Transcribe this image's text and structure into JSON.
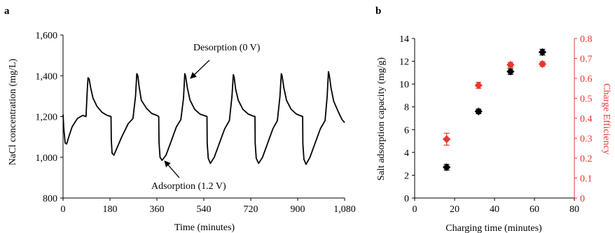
{
  "chart_data": [
    {
      "type": "line",
      "panel_label": "a",
      "xlabel": "Time (minutes)",
      "ylabel": "NaCl concentration (mg/L)",
      "xlim": [
        0,
        1080
      ],
      "ylim": [
        800,
        1600
      ],
      "xticks": [
        0,
        180,
        360,
        540,
        720,
        900,
        1080
      ],
      "xtick_labels": [
        "0",
        "180",
        "360",
        "540",
        "720",
        "900",
        "1,080"
      ],
      "yticks": [
        800,
        1000,
        1200,
        1400,
        1600
      ],
      "ytick_labels": [
        "800",
        "1,000",
        "1,200",
        "1,400",
        "1,600"
      ],
      "grid": false,
      "series": [
        {
          "color": "#000000",
          "x": [
            0,
            3,
            8,
            14,
            22,
            35,
            55,
            75,
            88,
            93,
            96,
            100,
            106,
            115,
            130,
            150,
            170,
            184,
            185,
            188,
            195,
            205,
            225,
            250,
            268,
            278,
            283,
            287,
            292,
            300,
            320,
            340,
            360,
            367,
            368,
            372,
            380,
            395,
            415,
            435,
            452,
            462,
            467,
            470,
            477,
            487,
            505,
            525,
            545,
            552,
            553,
            557,
            565,
            580,
            600,
            620,
            638,
            648,
            653,
            656,
            662,
            672,
            690,
            710,
            727,
            736,
            737,
            741,
            750,
            765,
            785,
            805,
            822,
            832,
            837,
            840,
            847,
            857,
            875,
            895,
            912,
            919,
            920,
            924,
            932,
            947,
            967,
            987,
            1005,
            1013,
            1018,
            1021,
            1028,
            1038,
            1055,
            1070,
            1080
          ],
          "values": [
            1210,
            1140,
            1070,
            1065,
            1100,
            1150,
            1190,
            1205,
            1200,
            1330,
            1390,
            1385,
            1340,
            1290,
            1250,
            1220,
            1205,
            1200,
            1085,
            1020,
            1010,
            1040,
            1100,
            1165,
            1190,
            1300,
            1410,
            1400,
            1345,
            1280,
            1240,
            1215,
            1205,
            1200,
            1075,
            1000,
            985,
            1010,
            1080,
            1150,
            1185,
            1290,
            1410,
            1400,
            1340,
            1280,
            1235,
            1212,
            1203,
            1200,
            1070,
            995,
            970,
            1000,
            1070,
            1140,
            1180,
            1300,
            1405,
            1395,
            1335,
            1280,
            1235,
            1212,
            1203,
            1200,
            1070,
            995,
            970,
            1000,
            1070,
            1140,
            1180,
            1300,
            1410,
            1400,
            1340,
            1280,
            1235,
            1212,
            1203,
            1200,
            1065,
            990,
            965,
            1000,
            1070,
            1140,
            1180,
            1300,
            1420,
            1405,
            1340,
            1275,
            1225,
            1185,
            1170
          ]
        }
      ],
      "annotations": [
        {
          "text": "Desorption (0 V)",
          "points_to": {
            "x": 468,
            "y": 1390
          }
        },
        {
          "text": "Adsorption (1.2 V)",
          "points_to": {
            "x": 370,
            "y": 990
          }
        }
      ]
    },
    {
      "type": "scatter",
      "panel_label": "b",
      "xlabel": "Charging time (minutes)",
      "ylabel": "Salt adsorption capacity  (mg/g)",
      "y2label": "Charge Efficiency",
      "xlim": [
        0,
        80
      ],
      "ylim": [
        0,
        14
      ],
      "y2lim": [
        0,
        0.8
      ],
      "xticks": [
        0,
        20,
        40,
        60,
        80
      ],
      "xtick_labels": [
        "0",
        "20",
        "40",
        "60",
        "80"
      ],
      "yticks": [
        0,
        2,
        4,
        6,
        8,
        10,
        12,
        14
      ],
      "ytick_labels": [
        "0",
        "2",
        "4",
        "6",
        "8",
        "10",
        "12",
        "14"
      ],
      "y2ticks": [
        0,
        0.1,
        0.2,
        0.3,
        0.4,
        0.5,
        0.6,
        0.7,
        0.8
      ],
      "y2tick_labels": [
        "0",
        "0.1",
        "0.2",
        "0.3",
        "0.4",
        "0.5",
        "0.6",
        "0.7",
        "0.8"
      ],
      "grid": false,
      "colors": {
        "black": "#000000",
        "red": "#e8392c"
      },
      "series": [
        {
          "axis": "left",
          "color": "#000000",
          "x": [
            16,
            32,
            48,
            64
          ],
          "values": [
            2.7,
            7.6,
            11.1,
            12.8
          ],
          "errors": [
            0.25,
            0.2,
            0.25,
            0.25
          ]
        },
        {
          "axis": "right",
          "color": "#e8392c",
          "x": [
            16,
            32,
            48,
            64
          ],
          "values": [
            0.295,
            0.565,
            0.668,
            0.672
          ],
          "errors": [
            0.03,
            0.015,
            0.012,
            0.012
          ]
        }
      ]
    }
  ]
}
